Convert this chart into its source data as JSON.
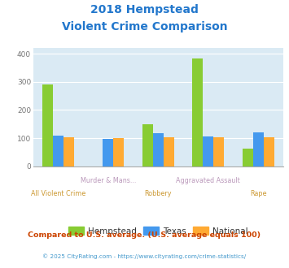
{
  "title_line1": "2018 Hempstead",
  "title_line2": "Violent Crime Comparison",
  "title_color": "#2277cc",
  "categories": [
    "All Violent Crime",
    "Murder & Mans...",
    "Robbery",
    "Aggravated Assault",
    "Rape"
  ],
  "hempstead": [
    290,
    0,
    148,
    383,
    63
  ],
  "texas": [
    110,
    96,
    116,
    107,
    121
  ],
  "national": [
    102,
    101,
    102,
    102,
    102
  ],
  "bar_color_hempstead": "#88cc33",
  "bar_color_texas": "#4499ee",
  "bar_color_national": "#ffaa33",
  "ylim": [
    0,
    420
  ],
  "yticks": [
    0,
    100,
    200,
    300,
    400
  ],
  "background_color": "#daeaf4",
  "grid_color": "#ffffff",
  "legend_labels": [
    "Hempstead",
    "Texas",
    "National"
  ],
  "footnote1": "Compared to U.S. average. (U.S. average equals 100)",
  "footnote2": "© 2025 CityRating.com - https://www.cityrating.com/crime-statistics/",
  "footnote1_color": "#cc4400",
  "footnote2_color": "#4499cc",
  "label_top_color": "#bb99bb",
  "label_bottom_color": "#cc9933"
}
